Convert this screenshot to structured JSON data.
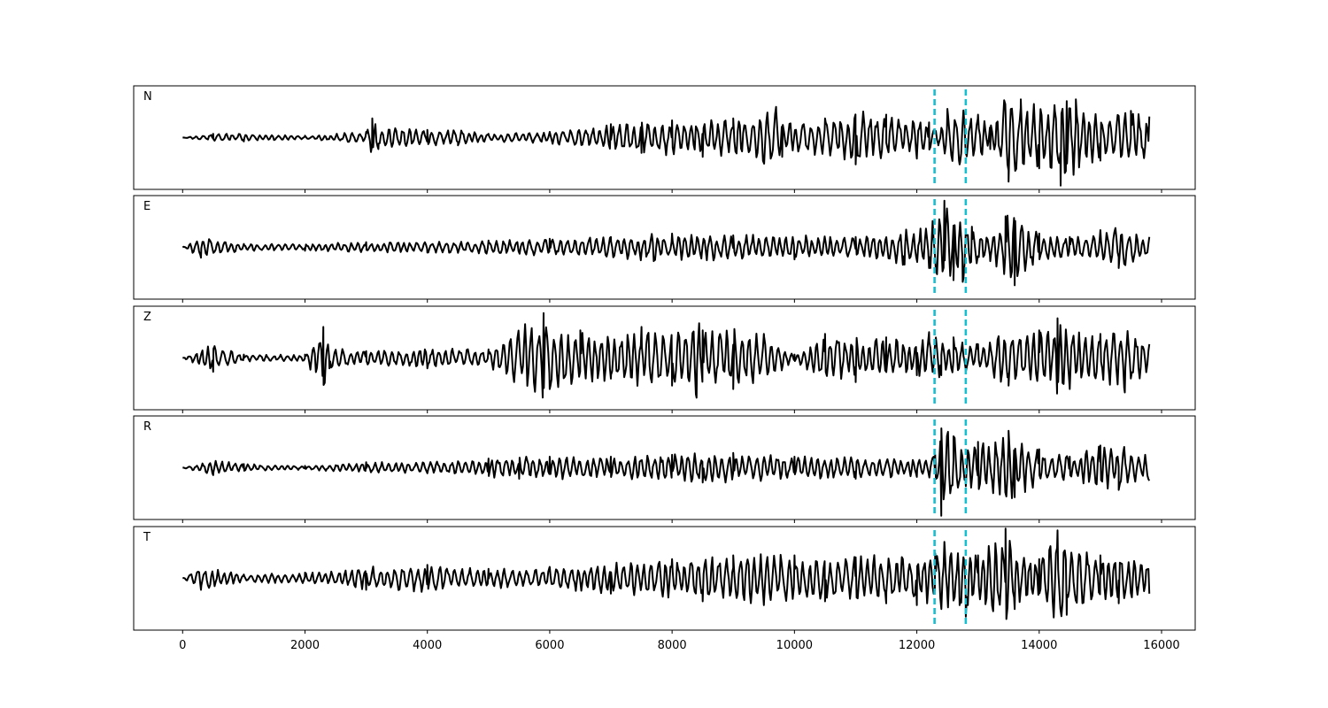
{
  "chart_data": {
    "type": "line",
    "title": "",
    "xlabel": "",
    "ylabel": "",
    "xlim": [
      -800,
      16550
    ],
    "x_ticks": [
      0,
      2000,
      4000,
      6000,
      8000,
      10000,
      12000,
      14000,
      16000
    ],
    "x_tick_labels": [
      "0",
      "2000",
      "4000",
      "6000",
      "8000",
      "10000",
      "12000",
      "14000",
      "16000"
    ],
    "y_ticks_shown": false,
    "trace_color": "#000000",
    "marker_color": "#17becf",
    "marker_style": "dashed",
    "vertical_markers": [
      12290,
      12800
    ],
    "panels": [
      {
        "label": "N",
        "ylim": [
          -1.35,
          1.35
        ],
        "x_end": 15800,
        "samples": [
          [
            0,
            0
          ],
          [
            500,
            0.1
          ],
          [
            1000,
            -0.1
          ],
          [
            2000,
            0.05
          ],
          [
            3000,
            0.15
          ],
          [
            3100,
            0.5
          ],
          [
            3200,
            -0.3
          ],
          [
            4000,
            0.2
          ],
          [
            4500,
            -0.2
          ],
          [
            5000,
            0.1
          ],
          [
            6000,
            0.15
          ],
          [
            7000,
            0.35
          ],
          [
            7500,
            -0.4
          ],
          [
            8000,
            0.45
          ],
          [
            8500,
            -0.5
          ],
          [
            9000,
            0.5
          ],
          [
            9700,
            0.8
          ],
          [
            9800,
            -0.5
          ],
          [
            10500,
            0.5
          ],
          [
            11000,
            -0.7
          ],
          [
            11500,
            0.6
          ],
          [
            12000,
            -0.55
          ],
          [
            12200,
            0.4
          ],
          [
            12350,
            -0.2
          ],
          [
            12500,
            0.75
          ],
          [
            12700,
            -0.7
          ],
          [
            13000,
            0.6
          ],
          [
            13200,
            -0.3
          ],
          [
            13500,
            -1.15
          ],
          [
            13700,
            1.0
          ],
          [
            14000,
            -0.8
          ],
          [
            14250,
            0.85
          ],
          [
            14350,
            -1.25
          ],
          [
            14450,
            0.95
          ],
          [
            14600,
            1.0
          ],
          [
            15000,
            -0.6
          ],
          [
            15500,
            0.7
          ],
          [
            15800,
            0.55
          ]
        ]
      },
      {
        "label": "E",
        "ylim": [
          -1.5,
          1.5
        ],
        "x_end": 15800,
        "samples": [
          [
            0,
            0
          ],
          [
            300,
            -0.3
          ],
          [
            1000,
            0.1
          ],
          [
            2000,
            -0.1
          ],
          [
            3000,
            0.15
          ],
          [
            4000,
            -0.15
          ],
          [
            5000,
            0.2
          ],
          [
            6000,
            0.25
          ],
          [
            7000,
            0.3
          ],
          [
            7700,
            -0.4
          ],
          [
            8000,
            0.4
          ],
          [
            9000,
            0.35
          ],
          [
            10000,
            -0.35
          ],
          [
            11000,
            0.3
          ],
          [
            11800,
            -0.5
          ],
          [
            12200,
            -0.6
          ],
          [
            12450,
            1.35
          ],
          [
            12600,
            -0.95
          ],
          [
            12750,
            -1.0
          ],
          [
            12900,
            0.6
          ],
          [
            13200,
            -0.4
          ],
          [
            13450,
            0.9
          ],
          [
            13600,
            -1.1
          ],
          [
            14000,
            0.4
          ],
          [
            14500,
            0.3
          ],
          [
            15000,
            0.5
          ],
          [
            15300,
            -0.6
          ],
          [
            15800,
            0.3
          ]
        ]
      },
      {
        "label": "Z",
        "ylim": [
          -1.5,
          1.5
        ],
        "x_end": 15800,
        "samples": [
          [
            0,
            0
          ],
          [
            500,
            -0.4
          ],
          [
            1000,
            0.1
          ],
          [
            2000,
            0.1
          ],
          [
            2300,
            0.9
          ],
          [
            2400,
            -0.3
          ],
          [
            3000,
            0.2
          ],
          [
            4000,
            -0.3
          ],
          [
            5000,
            0.25
          ],
          [
            5900,
            1.3
          ],
          [
            6000,
            -0.9
          ],
          [
            6500,
            0.8
          ],
          [
            7000,
            -0.6
          ],
          [
            7500,
            0.9
          ],
          [
            8000,
            -0.8
          ],
          [
            8400,
            -1.15
          ],
          [
            8500,
            0.8
          ],
          [
            9000,
            -0.9
          ],
          [
            9500,
            0.7
          ],
          [
            10000,
            0.1
          ],
          [
            10500,
            0.7
          ],
          [
            11000,
            -0.7
          ],
          [
            11500,
            0.6
          ],
          [
            12000,
            -0.5
          ],
          [
            12200,
            0.75
          ],
          [
            12400,
            -0.5
          ],
          [
            12600,
            0.6
          ],
          [
            12800,
            -0.4
          ],
          [
            13000,
            0.4
          ],
          [
            13500,
            -0.8
          ],
          [
            14000,
            0.8
          ],
          [
            14300,
            1.15
          ],
          [
            14500,
            -0.9
          ],
          [
            15000,
            0.7
          ],
          [
            15400,
            -1.0
          ],
          [
            15800,
            0.4
          ]
        ]
      },
      {
        "label": "R",
        "ylim": [
          -1.4,
          1.4
        ],
        "x_end": 15800,
        "samples": [
          [
            0,
            0
          ],
          [
            500,
            -0.2
          ],
          [
            1000,
            0.1
          ],
          [
            2000,
            0.05
          ],
          [
            3000,
            0.15
          ],
          [
            4000,
            -0.15
          ],
          [
            5000,
            0.25
          ],
          [
            5500,
            -0.3
          ],
          [
            6000,
            0.3
          ],
          [
            7000,
            0.3
          ],
          [
            8000,
            0.35
          ],
          [
            8500,
            -0.4
          ],
          [
            9000,
            0.4
          ],
          [
            10000,
            0.3
          ],
          [
            11000,
            -0.3
          ],
          [
            12000,
            -0.25
          ],
          [
            12300,
            0.35
          ],
          [
            12400,
            -1.3
          ],
          [
            12600,
            0.85
          ],
          [
            12800,
            -0.5
          ],
          [
            13000,
            0.7
          ],
          [
            13500,
            1.0
          ],
          [
            13600,
            -0.8
          ],
          [
            14000,
            0.5
          ],
          [
            14500,
            0.3
          ],
          [
            15000,
            0.6
          ],
          [
            15300,
            -0.6
          ],
          [
            15800,
            -0.35
          ]
        ]
      },
      {
        "label": "T",
        "ylim": [
          -1.35,
          1.35
        ],
        "x_end": 15800,
        "samples": [
          [
            0,
            0
          ],
          [
            300,
            -0.3
          ],
          [
            1000,
            0.1
          ],
          [
            2000,
            0.15
          ],
          [
            3000,
            -0.3
          ],
          [
            4000,
            0.35
          ],
          [
            5000,
            0.25
          ],
          [
            6000,
            0.3
          ],
          [
            7000,
            -0.4
          ],
          [
            8000,
            0.5
          ],
          [
            8500,
            -0.6
          ],
          [
            9000,
            0.6
          ],
          [
            9500,
            -0.7
          ],
          [
            10000,
            0.6
          ],
          [
            10500,
            -0.6
          ],
          [
            11000,
            0.55
          ],
          [
            11500,
            -0.65
          ],
          [
            12000,
            -0.7
          ],
          [
            12300,
            0.65
          ],
          [
            12450,
            0.95
          ],
          [
            12700,
            -0.7
          ],
          [
            12800,
            -1.0
          ],
          [
            13000,
            0.6
          ],
          [
            13450,
            1.3
          ],
          [
            13600,
            -0.8
          ],
          [
            14000,
            0.5
          ],
          [
            14300,
            1.25
          ],
          [
            14450,
            -0.95
          ],
          [
            15000,
            0.6
          ],
          [
            15300,
            -0.65
          ],
          [
            15800,
            -0.4
          ]
        ]
      }
    ]
  }
}
